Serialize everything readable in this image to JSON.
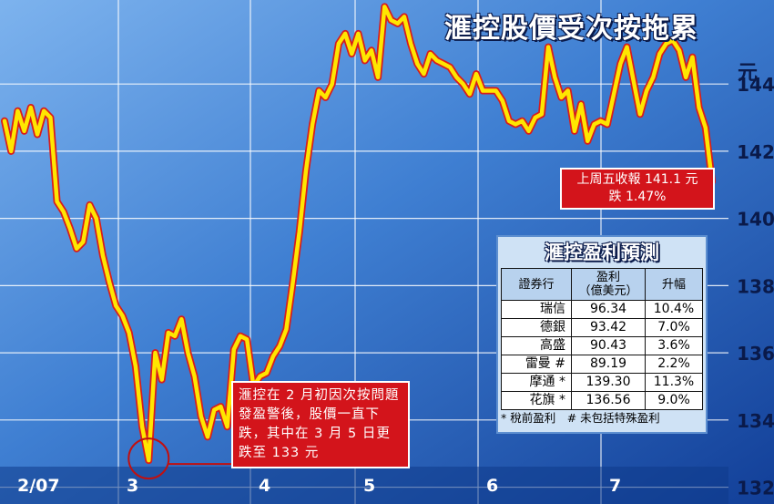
{
  "title": "滙控股價受次按拖累",
  "unit": "元",
  "chart_data": {
    "type": "line",
    "title": "滙控股價受次按拖累",
    "ylabel": "元",
    "ylim": [
      131.5,
      146.5
    ],
    "yticks": [
      132,
      134,
      136,
      138,
      140,
      142,
      144
    ],
    "grid": true,
    "month_labels": [
      "2/07",
      "3",
      "4",
      "5",
      "6",
      "7"
    ],
    "series": [
      {
        "values": [
          142.9,
          142.0,
          143.2,
          142.6,
          143.3,
          142.5,
          143.2,
          143.0,
          140.5,
          140.2,
          139.7,
          139.1,
          139.3,
          140.4,
          140.0,
          138.9,
          138.1,
          137.4,
          137.1,
          136.6,
          135.6,
          133.8,
          132.8,
          136.0,
          135.2,
          136.6,
          136.5,
          137.0,
          136.0,
          135.3,
          134.1,
          133.5,
          134.3,
          134.4,
          133.8,
          136.1,
          136.5,
          136.4,
          135.0,
          135.3,
          135.4,
          135.9,
          136.2,
          136.7,
          138.1,
          139.6,
          141.4,
          142.8,
          143.8,
          143.6,
          144.0,
          145.2,
          145.5,
          144.9,
          145.5,
          144.7,
          145.0,
          144.2,
          146.3,
          145.9,
          145.8,
          146.0,
          145.2,
          144.6,
          144.3,
          144.9,
          144.7,
          144.6,
          144.5,
          144.2,
          144.0,
          143.7,
          144.3,
          143.8,
          143.8,
          143.8,
          143.5,
          142.9,
          142.8,
          142.9,
          142.6,
          143.0,
          143.1,
          145.1,
          144.2,
          143.6,
          143.8,
          142.6,
          143.4,
          142.3,
          142.8,
          142.9,
          142.8,
          143.7,
          144.6,
          145.1,
          144.1,
          143.1,
          143.8,
          144.2,
          144.9,
          145.2,
          145.3,
          145.0,
          144.2,
          144.8,
          143.3,
          142.7,
          141.1
        ]
      }
    ],
    "annotations": [
      {
        "text": "上周五收報 141.1 元\n跌 1.47%",
        "value": 141.1
      },
      {
        "text": "滙控在 2 月初因次按問題發盈警後，股價一直下跌，其中在 3 月 5 日更跌至 133 元",
        "value": 133
      }
    ]
  },
  "callout_close": {
    "line1": "上周五收報 141.1 元",
    "line2": "跌 1.47%"
  },
  "callout_march": {
    "text": "滙控在 2 月初因次按問題發盈警後，股價一直下跌，其中在 3 月 5 日更跌至 133 元"
  },
  "forecast": {
    "title": "滙控盈利預測",
    "headers": {
      "broker": "證券行",
      "profit": "盈利\n（億美元）",
      "growth": "升幅"
    },
    "rows": [
      {
        "broker": "瑞信",
        "profit": "96.34",
        "growth": "10.4%"
      },
      {
        "broker": "德銀",
        "profit": "93.42",
        "growth": "7.0%"
      },
      {
        "broker": "高盛",
        "profit": "90.43",
        "growth": "3.6%"
      },
      {
        "broker": "雷曼 #",
        "profit": "89.19",
        "growth": "2.2%"
      },
      {
        "broker": "摩通 *",
        "profit": "139.30",
        "growth": "11.3%"
      },
      {
        "broker": "花旗 *",
        "profit": "136.56",
        "growth": "9.0%"
      }
    ],
    "note": "* 稅前盈利　# 未包括特殊盈利"
  },
  "colors": {
    "line": "#ffe600",
    "line_glow": "#d81c1c",
    "callout_bg": "#d3141b",
    "bg_dark": "#1a50a8",
    "bg_light": "#6aa3e4"
  }
}
